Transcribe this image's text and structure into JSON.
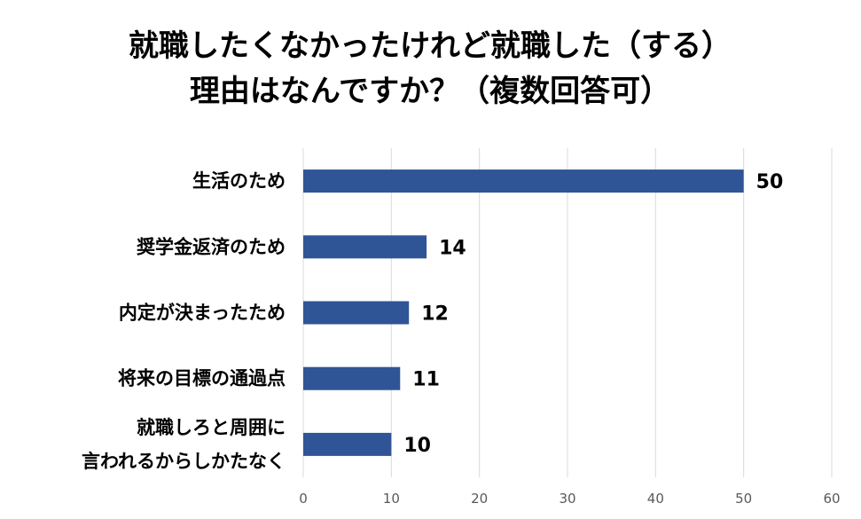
{
  "chart_data": {
    "type": "bar",
    "orientation": "horizontal",
    "title_lines": [
      "就職したくなかったけれど就職した（する）",
      "理由はなんですか？（複数回答可）"
    ],
    "categories": [
      [
        "生活のため"
      ],
      [
        "奨学金返済のため"
      ],
      [
        "内定が決まったため"
      ],
      [
        "将来の目標の通過点"
      ],
      [
        "就職しろと周囲に",
        "言われるからしかたなく"
      ]
    ],
    "values": [
      50,
      14,
      12,
      11,
      10
    ],
    "data_labels": [
      "50",
      "14",
      "12",
      "11",
      "10"
    ],
    "xlim": [
      0,
      60
    ],
    "x_ticks": [
      0,
      10,
      20,
      30,
      40,
      50,
      60
    ],
    "x_tick_labels": [
      "0",
      "10",
      "20",
      "30",
      "40",
      "50",
      "60"
    ],
    "grid": true,
    "legend": "none",
    "bar_color": "#2f5597",
    "grid_color": "#d9d9d9"
  }
}
